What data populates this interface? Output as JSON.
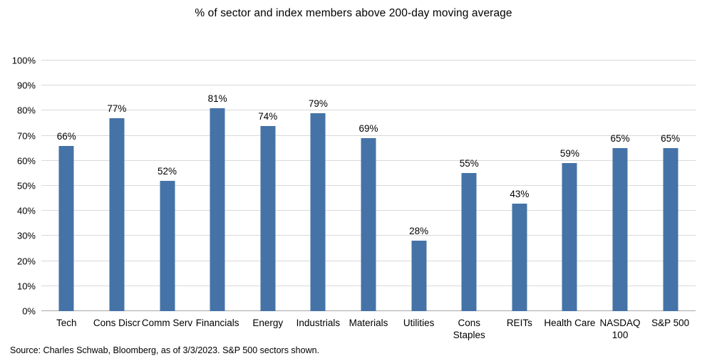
{
  "chart_data": {
    "type": "bar",
    "title": "% of sector and index members above 200-day moving average",
    "categories": [
      "Tech",
      "Cons Discr",
      "Comm Serv",
      "Financials",
      "Energy",
      "Industrials",
      "Materials",
      "Utilities",
      "Cons Staples",
      "REITs",
      "Health Care",
      "NASDAQ 100",
      "S&P 500"
    ],
    "category_lines": [
      [
        "Tech"
      ],
      [
        "Cons Discr"
      ],
      [
        "Comm Serv"
      ],
      [
        "Financials"
      ],
      [
        "Energy"
      ],
      [
        "Industrials"
      ],
      [
        "Materials"
      ],
      [
        "Utilities"
      ],
      [
        "Cons",
        "Staples"
      ],
      [
        "REITs"
      ],
      [
        "Health Care"
      ],
      [
        "NASDAQ",
        "100"
      ],
      [
        "S&P 500"
      ]
    ],
    "values": [
      66,
      77,
      52,
      81,
      74,
      79,
      69,
      28,
      55,
      43,
      59,
      65,
      65
    ],
    "value_labels": [
      "66%",
      "77%",
      "52%",
      "81%",
      "74%",
      "79%",
      "69%",
      "28%",
      "55%",
      "43%",
      "59%",
      "65%",
      "65%"
    ],
    "ylim": [
      0,
      100
    ],
    "ytick_step": 10,
    "ytick_labels": [
      "0%",
      "10%",
      "20%",
      "30%",
      "40%",
      "50%",
      "60%",
      "70%",
      "80%",
      "90%",
      "100%"
    ],
    "grid": true,
    "legend": "none",
    "bar_color": "#4573a7"
  },
  "source_note": "Source: Charles Schwab, Bloomberg, as of 3/3/2023.  S&P 500 sectors shown."
}
